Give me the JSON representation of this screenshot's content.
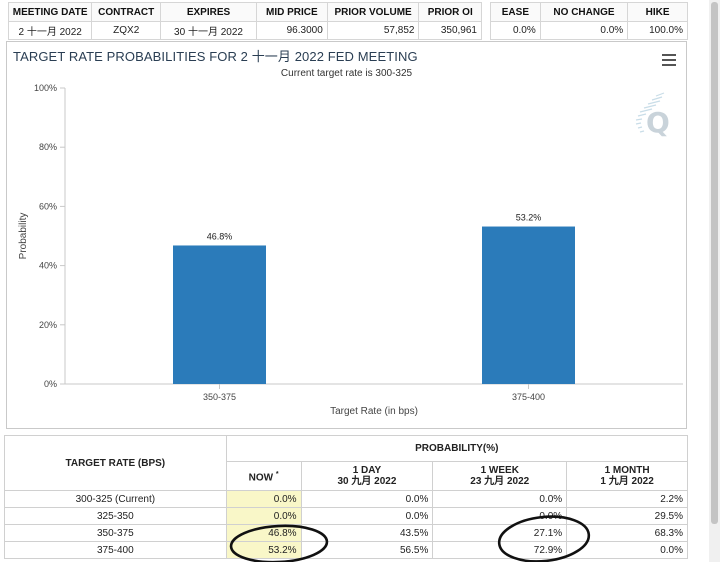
{
  "meeting_table": {
    "headers": [
      "MEETING DATE",
      "CONTRACT",
      "EXPIRES",
      "MID PRICE",
      "PRIOR VOLUME",
      "PRIOR OI"
    ],
    "row": [
      "2 十一月 2022",
      "ZQX2",
      "30 十一月 2022",
      "96.3000",
      "57,852",
      "350,961"
    ]
  },
  "outcome_table": {
    "headers": [
      "EASE",
      "NO CHANGE",
      "HIKE"
    ],
    "row": [
      "0.0%",
      "0.0%",
      "100.0%"
    ]
  },
  "chart_panel": {
    "menu_icon": "hamburger-menu-icon",
    "logo": "quikstrike-q-logo"
  },
  "chart_data": {
    "type": "bar",
    "title": "TARGET RATE PROBABILITIES FOR 2 十一月 2022 FED MEETING",
    "subtitle": "Current target rate is 300-325",
    "xlabel": "Target Rate (in bps)",
    "ylabel": "Probability",
    "categories": [
      "350-375",
      "375-400"
    ],
    "values": [
      46.8,
      53.2
    ],
    "data_labels": [
      "46.8%",
      "53.2%"
    ],
    "ylim": [
      0,
      100
    ],
    "yticks": [
      0,
      20,
      40,
      60,
      80,
      100
    ],
    "ytick_labels": [
      "0%",
      "20%",
      "40%",
      "60%",
      "80%",
      "100%"
    ],
    "bar_color": "#2b7bba",
    "grid": false,
    "legend": "none"
  },
  "probability_table": {
    "col0_header": "TARGET RATE (BPS)",
    "group_header": "PROBABILITY(%)",
    "columns": [
      {
        "title": "NOW",
        "marker": "*",
        "date": ""
      },
      {
        "title": "1 DAY",
        "date": "30 九月 2022"
      },
      {
        "title": "1 WEEK",
        "date": "23 九月 2022"
      },
      {
        "title": "1 MONTH",
        "date": "1 九月 2022"
      }
    ],
    "rows": [
      {
        "rate": "300-325 (Current)",
        "values": [
          "0.0%",
          "0.0%",
          "0.0%",
          "2.2%"
        ]
      },
      {
        "rate": "325-350",
        "values": [
          "0.0%",
          "0.0%",
          "0.0%",
          "29.5%"
        ]
      },
      {
        "rate": "350-375",
        "values": [
          "46.8%",
          "43.5%",
          "27.1%",
          "68.3%"
        ]
      },
      {
        "rate": "375-400",
        "values": [
          "53.2%",
          "56.5%",
          "72.9%",
          "0.0%"
        ]
      }
    ],
    "highlight_color": "#f9f7c8"
  }
}
